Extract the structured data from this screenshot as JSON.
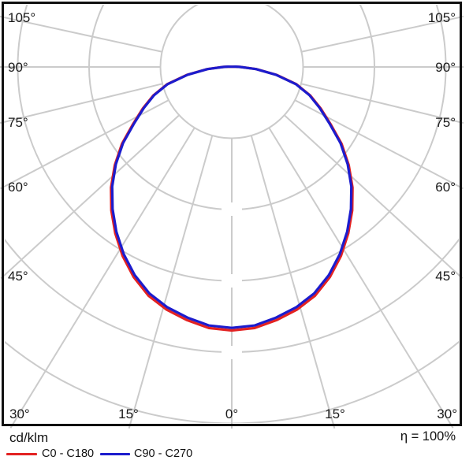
{
  "chart_data": {
    "type": "line",
    "variant": "polar_photometric_intensity_distribution",
    "title": "",
    "quantity_label": "cd/klm",
    "efficiency": "η = 100%",
    "legend_position": "bottom-left",
    "grid": true,
    "angle_unit": "degrees, gamma, 0° points downward, symmetric left/right",
    "angle_ticks": [
      "0°",
      "15°",
      "30°",
      "45°",
      "60°",
      "75°",
      "90°",
      "105°"
    ],
    "angle_labels_order": [
      "105°",
      "90°",
      "75°",
      "60°",
      "45°",
      "30°",
      "15°",
      "0°",
      "15°",
      "30°",
      "45°",
      "60°",
      "75°",
      "90°",
      "105°"
    ],
    "radial_grid": {
      "rings": 5,
      "ring_labels_visible": false,
      "note": "intensity rings unlabeled in image"
    },
    "gamma_deg": [
      0,
      5,
      10,
      15,
      20,
      25,
      30,
      35,
      40,
      45,
      50,
      55,
      60,
      65,
      70,
      75,
      80,
      85,
      90,
      95,
      100
    ],
    "series": [
      {
        "name": "C0 - C180",
        "color": "#e32222",
        "intensity_rel": [
          3.66,
          3.64,
          3.57,
          3.49,
          3.38,
          3.22,
          3.03,
          2.82,
          2.6,
          2.37,
          2.12,
          1.86,
          1.58,
          1.36,
          1.16,
          0.93,
          0.63,
          0.34,
          0.12,
          0.05,
          0.02
        ]
      },
      {
        "name": "C90 - C270",
        "color": "#1c1ccd",
        "intensity_rel": [
          3.66,
          3.64,
          3.57,
          3.49,
          3.38,
          3.22,
          3.03,
          2.82,
          2.6,
          2.37,
          2.12,
          1.86,
          1.58,
          1.36,
          1.16,
          0.93,
          0.63,
          0.34,
          0.12,
          0.05,
          0.02
        ]
      }
    ],
    "colors": {
      "grid": "#cbcbcb",
      "border": "#111111",
      "background": "#ffffff"
    }
  }
}
